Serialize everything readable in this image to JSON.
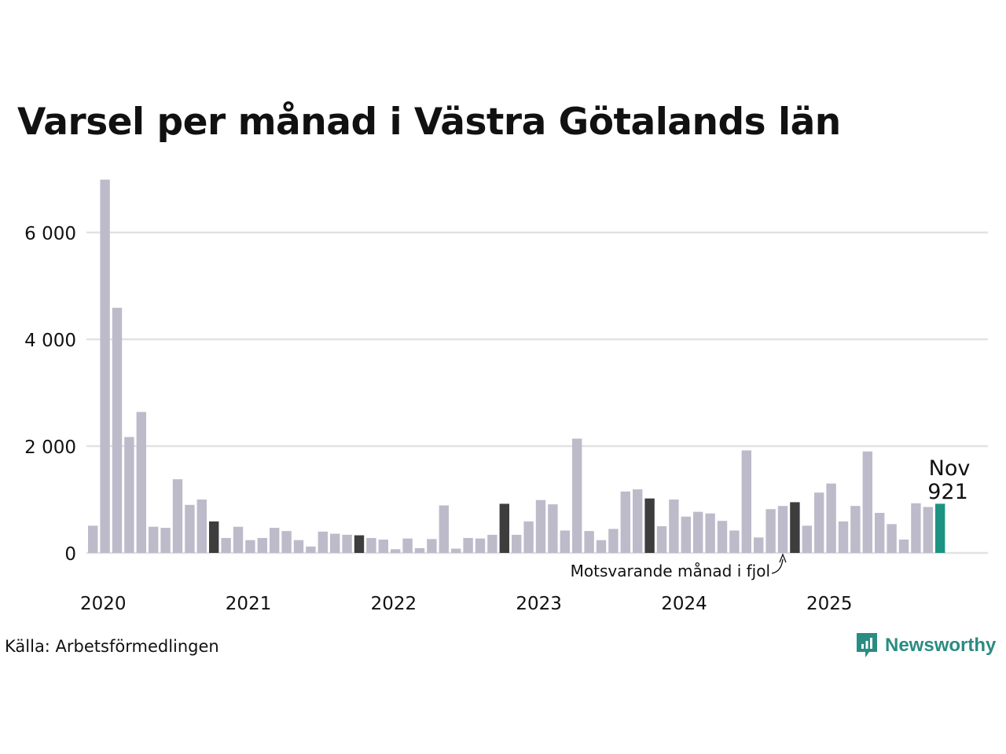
{
  "chart_data": {
    "type": "bar",
    "title": "Varsel per månad i Västra Götalands län",
    "source": "Källa: Arbetsförmedlingen",
    "brand": "Newsworthy",
    "ylim": [
      0,
      7000
    ],
    "yticks": [
      0,
      2000,
      4000,
      6000
    ],
    "ytick_labels": [
      "0",
      "2 000",
      "4 000",
      "6 000"
    ],
    "xtick_labels": [
      "2020",
      "2021",
      "2022",
      "2023",
      "2024",
      "2025"
    ],
    "start": "2020-01",
    "values": [
      510,
      6990,
      4590,
      2170,
      2640,
      490,
      470,
      1380,
      900,
      1000,
      590,
      280,
      490,
      240,
      280,
      470,
      410,
      240,
      120,
      400,
      360,
      340,
      330,
      280,
      250,
      70,
      270,
      90,
      260,
      890,
      80,
      280,
      270,
      340,
      920,
      340,
      590,
      990,
      910,
      420,
      2140,
      410,
      240,
      450,
      1150,
      1190,
      1020,
      500,
      1000,
      680,
      770,
      740,
      600,
      420,
      1920,
      290,
      820,
      880,
      950,
      510,
      1130,
      1300,
      590,
      880,
      1900,
      750,
      540,
      250,
      930,
      860,
      921
    ],
    "highlight_previous_novembers": [
      10,
      22,
      34,
      46,
      58
    ],
    "current_index": 70,
    "colors": {
      "default": "#bdbbca",
      "previous_year": "#3d3d3d",
      "current": "#1d9384",
      "grid": "#e2e2e2"
    },
    "callout": {
      "month": "Nov",
      "value": "921"
    },
    "annotation": "Motsvarande månad i fjol"
  }
}
